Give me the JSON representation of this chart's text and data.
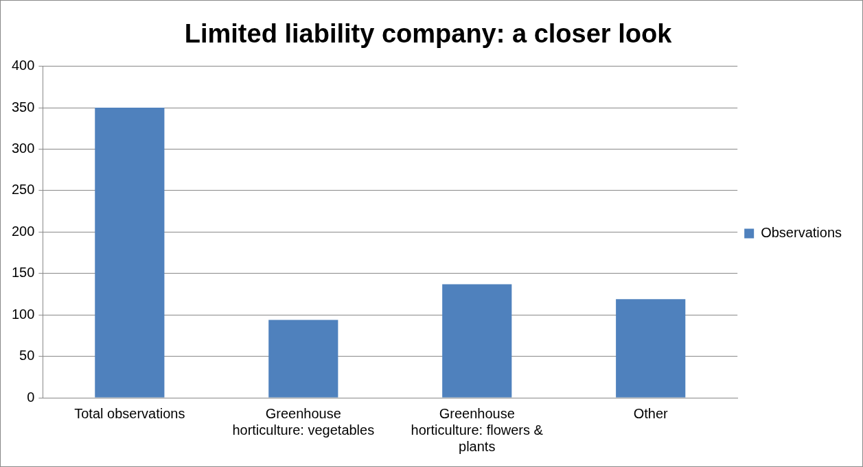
{
  "chart_data": {
    "type": "bar",
    "title": "Limited liability company: a closer look",
    "categories": [
      "Total observations",
      "Greenhouse horticulture: vegetables",
      "Greenhouse horticulture: flowers & plants",
      "Other"
    ],
    "series": [
      {
        "name": "Observations",
        "color": "#4f81bd",
        "values": [
          350,
          94,
          137,
          119
        ]
      }
    ],
    "ylim": [
      0,
      400
    ],
    "yticks": [
      0,
      50,
      100,
      150,
      200,
      250,
      300,
      350,
      400
    ],
    "grid": "y",
    "legend": "right"
  }
}
